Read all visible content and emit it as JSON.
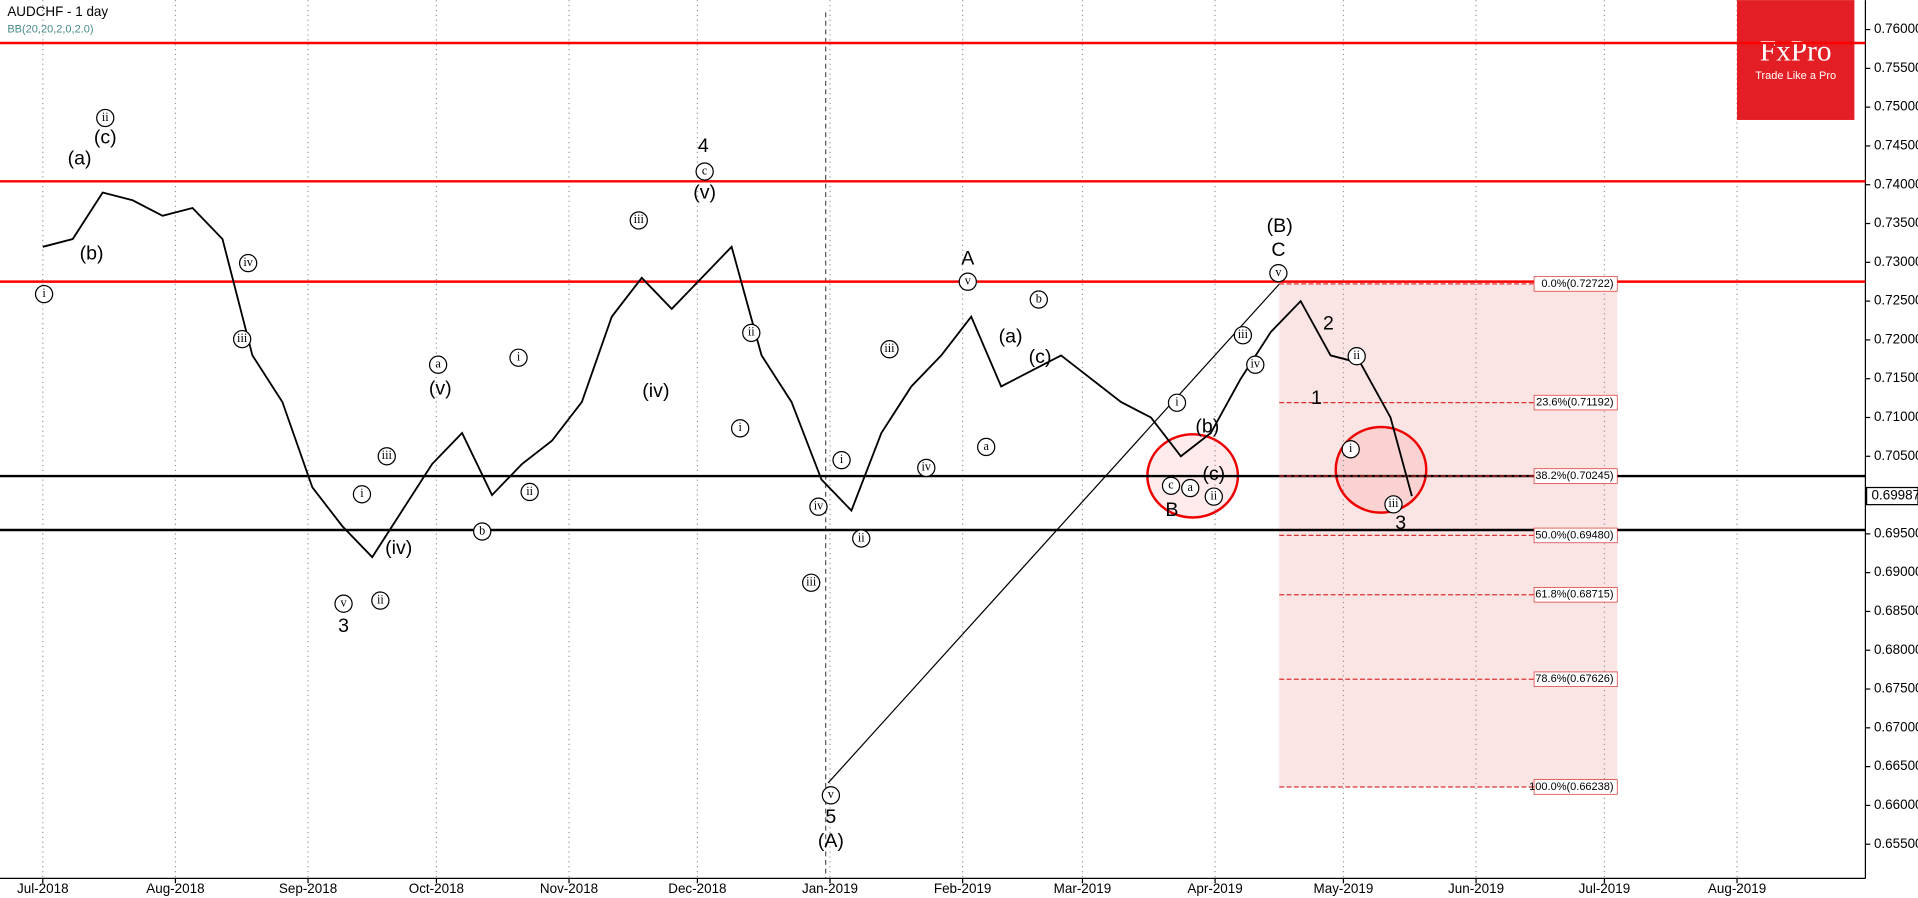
{
  "chart_data": {
    "type": "line",
    "title": "AUDCHF   - 1 day",
    "subtitle": "BB(20,20,2,0,2.0)",
    "logo": {
      "brand": "FxPro",
      "tagline": "Trade Like a Pro"
    },
    "xlim": [
      -10,
      426
    ],
    "ylim": [
      0.6506,
      0.7638
    ],
    "xticks": [
      {
        "value": 0,
        "label": "Jul-2018"
      },
      {
        "value": 31,
        "label": "Aug-2018"
      },
      {
        "value": 62,
        "label": "Sep-2018"
      },
      {
        "value": 92,
        "label": "Oct-2018"
      },
      {
        "value": 123,
        "label": "Nov-2018"
      },
      {
        "value": 153,
        "label": "Dec-2018"
      },
      {
        "value": 184,
        "label": "Jan-2019"
      },
      {
        "value": 215,
        "label": "Feb-2019"
      },
      {
        "value": 243,
        "label": "Mar-2019"
      },
      {
        "value": 274,
        "label": "Apr-2019"
      },
      {
        "value": 304,
        "label": "May-2019"
      },
      {
        "value": 335,
        "label": "Jun-2019"
      },
      {
        "value": 365,
        "label": "Jul-2019"
      },
      {
        "value": 396,
        "label": "Aug-2019"
      }
    ],
    "yticks": [
      {
        "value": 0.655,
        "label": "0.65500"
      },
      {
        "value": 0.66,
        "label": "0.66000"
      },
      {
        "value": 0.665,
        "label": "0.66500"
      },
      {
        "value": 0.67,
        "label": "0.67000"
      },
      {
        "value": 0.675,
        "label": "0.67500"
      },
      {
        "value": 0.68,
        "label": "0.68000"
      },
      {
        "value": 0.685,
        "label": "0.68500"
      },
      {
        "value": 0.69,
        "label": "0.69000"
      },
      {
        "value": 0.695,
        "label": "0.69500"
      },
      {
        "value": 0.7,
        "label": "0.70000"
      },
      {
        "value": 0.705,
        "label": "0.70500"
      },
      {
        "value": 0.71,
        "label": "0.71000"
      },
      {
        "value": 0.715,
        "label": "0.71500"
      },
      {
        "value": 0.72,
        "label": "0.72000"
      },
      {
        "value": 0.725,
        "label": "0.72500"
      },
      {
        "value": 0.73,
        "label": "0.73000"
      },
      {
        "value": 0.735,
        "label": "0.73500"
      },
      {
        "value": 0.74,
        "label": "0.74000"
      },
      {
        "value": 0.745,
        "label": "0.74500"
      },
      {
        "value": 0.75,
        "label": "0.75000"
      },
      {
        "value": 0.755,
        "label": "0.75500"
      },
      {
        "value": 0.76,
        "label": "0.76000"
      }
    ],
    "grid": true,
    "x": [
      0,
      7,
      14,
      21,
      28,
      35,
      42,
      49,
      56,
      63,
      70,
      77,
      84,
      91,
      98,
      105,
      112,
      119,
      126,
      133,
      140,
      147,
      154,
      161,
      168,
      175,
      182,
      189,
      196,
      203,
      210,
      217,
      224,
      231,
      238,
      245,
      252,
      259,
      266,
      273,
      280,
      287,
      294,
      301,
      308,
      315,
      320
    ],
    "series": [
      {
        "color": "#000000",
        "values": [
          0.732,
          0.733,
          0.739,
          0.738,
          0.736,
          0.737,
          0.733,
          0.718,
          0.712,
          0.701,
          0.696,
          0.692,
          0.698,
          0.704,
          0.708,
          0.7,
          0.704,
          0.707,
          0.712,
          0.723,
          0.728,
          0.724,
          0.728,
          0.732,
          0.718,
          0.712,
          0.702,
          0.698,
          0.708,
          0.714,
          0.718,
          0.723,
          0.714,
          0.716,
          0.718,
          0.715,
          0.712,
          0.71,
          0.705,
          0.708,
          0.715,
          0.721,
          0.725,
          0.718,
          0.717,
          0.71,
          0.69987
        ]
      }
    ],
    "last_price": {
      "value": 0.69987,
      "label": "0.69987"
    },
    "levels": [
      {
        "value": 0.75827,
        "color": "#ff0000"
      },
      {
        "value": 0.74044,
        "color": "#ff0000"
      },
      {
        "value": 0.72751,
        "color": "#ff0000"
      },
      {
        "value": 0.70245,
        "color": "#000000"
      },
      {
        "value": 0.6955,
        "color": "#000000"
      }
    ],
    "fib_range": [
      289,
      368
    ],
    "fib_levels": [
      {
        "value": 0.72722,
        "label": "0.0%(0.72722)"
      },
      {
        "value": 0.71192,
        "label": "23.6%(0.71192)"
      },
      {
        "value": 0.70245,
        "label": "38.2%(0.70245)"
      },
      {
        "value": 0.6948,
        "label": "50.0%(0.69480)"
      },
      {
        "value": 0.68715,
        "label": "61.8%(0.68715)"
      },
      {
        "value": 0.67626,
        "label": "78.6%(0.67626)"
      },
      {
        "value": 0.66238,
        "label": "100.0%(0.66238)"
      }
    ],
    "wave_labels": [
      {
        "text": "(a)",
        "x": 8.6,
        "y": 0.7433
      },
      {
        "text": "(c)",
        "x": 14.6,
        "y": 0.746
      },
      {
        "text": "(b)",
        "x": 11.4,
        "y": 0.731
      },
      {
        "text": "(v)",
        "x": 92.9,
        "y": 0.7136
      },
      {
        "text": "(iv)",
        "x": 83.2,
        "y": 0.6931
      },
      {
        "text": "3",
        "x": 70.3,
        "y": 0.683
      },
      {
        "text": "(iv)",
        "x": 143.3,
        "y": 0.7133
      },
      {
        "text": "4",
        "x": 154.4,
        "y": 0.7449
      },
      {
        "text": "(v)",
        "x": 154.7,
        "y": 0.7389
      },
      {
        "text": "5",
        "x": 184.2,
        "y": 0.6584
      },
      {
        "text": "(A)",
        "x": 184.2,
        "y": 0.6553
      },
      {
        "text": "A",
        "x": 216.2,
        "y": 0.7304
      },
      {
        "text": "(a)",
        "x": 226.2,
        "y": 0.7203
      },
      {
        "text": "(c)",
        "x": 233.1,
        "y": 0.7177
      },
      {
        "text": "(b)",
        "x": 272.2,
        "y": 0.7087
      },
      {
        "text": "(c)",
        "x": 273.7,
        "y": 0.7026
      },
      {
        "text": "B",
        "x": 263.9,
        "y": 0.698
      },
      {
        "text": "(B)",
        "x": 289.1,
        "y": 0.7346
      },
      {
        "text": "C",
        "x": 288.8,
        "y": 0.7315
      },
      {
        "text": "2",
        "x": 300.5,
        "y": 0.722
      },
      {
        "text": "1",
        "x": 297.7,
        "y": 0.7124
      },
      {
        "text": "3",
        "x": 317.4,
        "y": 0.6963
      }
    ],
    "circled_labels": [
      {
        "text": "i",
        "x": 0.3,
        "y": 0.7259
      },
      {
        "text": "ii",
        "x": 14.6,
        "y": 0.7486
      },
      {
        "text": "iv",
        "x": 48,
        "y": 0.7299
      },
      {
        "text": "iii",
        "x": 46.6,
        "y": 0.7201
      },
      {
        "text": "a",
        "x": 92.4,
        "y": 0.7168
      },
      {
        "text": "iii",
        "x": 80.4,
        "y": 0.705
      },
      {
        "text": "i",
        "x": 74.6,
        "y": 0.7001
      },
      {
        "text": "ii",
        "x": 78.9,
        "y": 0.6864
      },
      {
        "text": "v",
        "x": 70.3,
        "y": 0.686
      },
      {
        "text": "i",
        "x": 111.2,
        "y": 0.7177
      },
      {
        "text": "ii",
        "x": 113.8,
        "y": 0.7004
      },
      {
        "text": "b",
        "x": 102.7,
        "y": 0.6953
      },
      {
        "text": "iii",
        "x": 139.3,
        "y": 0.7354
      },
      {
        "text": "c",
        "x": 154.7,
        "y": 0.7417
      },
      {
        "text": "ii",
        "x": 165.6,
        "y": 0.7209
      },
      {
        "text": "i",
        "x": 163,
        "y": 0.7086
      },
      {
        "text": "iv",
        "x": 181.3,
        "y": 0.6985
      },
      {
        "text": "i",
        "x": 186.7,
        "y": 0.7045
      },
      {
        "text": "iii",
        "x": 179.6,
        "y": 0.6887
      },
      {
        "text": "ii",
        "x": 191.3,
        "y": 0.6944
      },
      {
        "text": "v",
        "x": 184.2,
        "y": 0.6613
      },
      {
        "text": "iii",
        "x": 197.9,
        "y": 0.7188
      },
      {
        "text": "iv",
        "x": 206.5,
        "y": 0.7035
      },
      {
        "text": "v",
        "x": 216.2,
        "y": 0.7275
      },
      {
        "text": "b",
        "x": 232.8,
        "y": 0.7252
      },
      {
        "text": "a",
        "x": 220.5,
        "y": 0.7062
      },
      {
        "text": "c",
        "x": 263.7,
        "y": 0.7012
      },
      {
        "text": "a",
        "x": 268.2,
        "y": 0.7009
      },
      {
        "text": "ii",
        "x": 273.7,
        "y": 0.6998
      },
      {
        "text": "i",
        "x": 265.1,
        "y": 0.7119
      },
      {
        "text": "iii",
        "x": 280.5,
        "y": 0.7206
      },
      {
        "text": "iv",
        "x": 283.4,
        "y": 0.7168
      },
      {
        "text": "v",
        "x": 288.8,
        "y": 0.7286
      },
      {
        "text": "ii",
        "x": 307.1,
        "y": 0.7179
      },
      {
        "text": "i",
        "x": 305.7,
        "y": 0.7059
      },
      {
        "text": "iii",
        "x": 315.7,
        "y": 0.6988
      }
    ]
  }
}
